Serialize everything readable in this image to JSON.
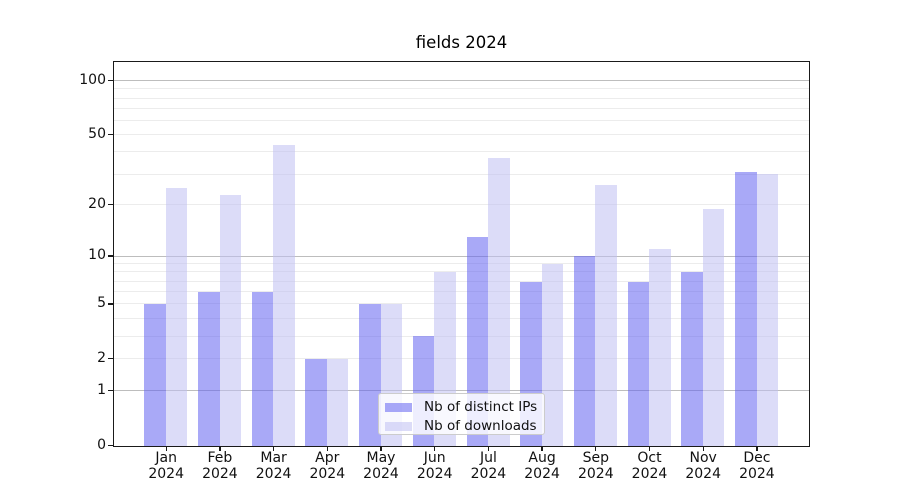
{
  "figure": {
    "title": "fields 2024"
  },
  "chart_data": {
    "type": "bar",
    "title": "fields 2024",
    "categories": [
      "Jan 2024",
      "Feb 2024",
      "Mar 2024",
      "Apr 2024",
      "May 2024",
      "Jun 2024",
      "Jul 2024",
      "Aug 2024",
      "Sep 2024",
      "Oct 2024",
      "Nov 2024",
      "Dec 2024"
    ],
    "series": [
      {
        "name": "Nb of distinct IPs",
        "color": "#6363f0",
        "opacity": 0.55,
        "values": [
          5,
          6,
          6,
          2,
          5,
          3,
          13,
          7,
          10,
          7,
          8,
          31
        ]
      },
      {
        "name": "Nb of downloads",
        "color": "#bfbff2",
        "opacity": 0.55,
        "values": [
          25,
          23,
          44,
          2,
          5,
          8,
          37,
          9,
          26,
          11,
          19,
          30
        ]
      }
    ],
    "xlabel": "",
    "ylabel": "",
    "yscale": "log1p",
    "ylim": [
      0,
      126
    ],
    "y_ticks": [
      0,
      1,
      2,
      5,
      10,
      20,
      50,
      100
    ],
    "y_major_gridlines": [
      1,
      10,
      100
    ],
    "y_minor_gridlines": [
      2,
      3,
      4,
      5,
      6,
      7,
      8,
      9,
      20,
      30,
      40,
      50,
      60,
      70,
      80,
      90
    ],
    "grid": true,
    "legend_position": "lower center"
  }
}
